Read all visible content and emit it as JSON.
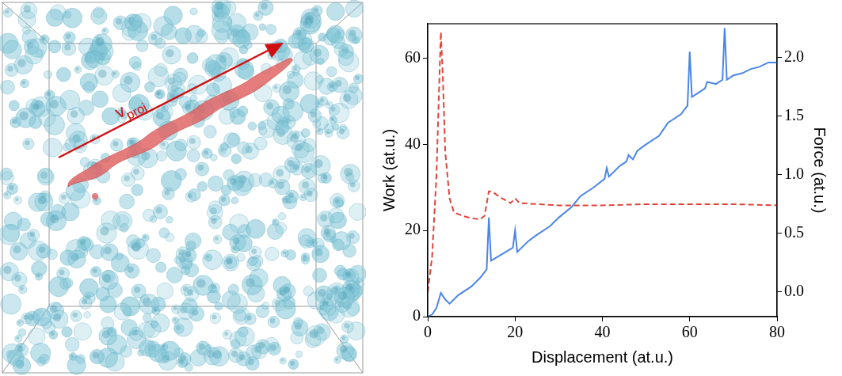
{
  "chart_data": {
    "type": "line",
    "xlabel": "Displacement (at.u.)",
    "ylabel": "Work (at.u.)",
    "y2label": "Force (at.u.)",
    "xlim": [
      0,
      80
    ],
    "xticks": [
      0,
      20,
      40,
      60,
      80
    ],
    "ylim": [
      0,
      68
    ],
    "yticks": [
      0,
      20,
      40,
      60
    ],
    "y2lim": [
      -0.21,
      2.29
    ],
    "y2ticks": [
      {
        "value": 0,
        "label": "0.0"
      },
      0.5,
      {
        "value": 1,
        "label": "1.0"
      },
      1.5,
      {
        "value": 2,
        "label": "2.0"
      }
    ],
    "grid": false,
    "series": [
      {
        "color": "#4a86e8",
        "line_style": "solid",
        "axis": "y",
        "x": [
          0,
          1,
          2,
          3,
          4,
          5,
          7,
          10,
          12,
          13.5,
          14,
          14.5,
          17,
          19.5,
          20,
          20.5,
          23,
          25,
          28,
          30,
          33,
          35,
          38,
          40.5,
          41,
          41.5,
          44,
          45.5,
          46,
          47,
          48,
          50,
          53,
          55,
          58,
          59.5,
          60,
          60.5,
          62,
          63.5,
          64,
          66,
          67.5,
          68,
          68.5,
          70,
          72,
          74,
          76,
          78,
          80
        ],
        "values": [
          0,
          0.5,
          2,
          5.5,
          4,
          3,
          5,
          7,
          9,
          11,
          23,
          13,
          14.5,
          16,
          20,
          15,
          17.5,
          19,
          21,
          23,
          25.5,
          28,
          30,
          32,
          34.5,
          32.5,
          35,
          36,
          37.5,
          36.5,
          38.5,
          40,
          42,
          45,
          47,
          49,
          61.5,
          51,
          52,
          53,
          54.5,
          54,
          55,
          67,
          55,
          56,
          56.5,
          57.5,
          58,
          59,
          59
        ]
      },
      {
        "color": "#e0453a",
        "line_style": "dashed",
        "axis": "y2",
        "x": [
          0,
          1,
          2,
          3,
          3.5,
          4,
          5,
          6,
          8,
          10,
          12,
          13,
          14,
          15,
          17,
          19,
          20,
          21,
          25,
          30,
          40,
          50,
          60,
          70,
          80
        ],
        "values": [
          0,
          0.3,
          1.0,
          2.22,
          1.8,
          1.2,
          0.8,
          0.68,
          0.65,
          0.63,
          0.62,
          0.65,
          0.86,
          0.85,
          0.8,
          0.76,
          0.8,
          0.76,
          0.75,
          0.74,
          0.74,
          0.75,
          0.75,
          0.75,
          0.74
        ]
      }
    ]
  },
  "image_panel": {
    "arrow_label": "v",
    "arrow_label_subscript": "proj"
  }
}
